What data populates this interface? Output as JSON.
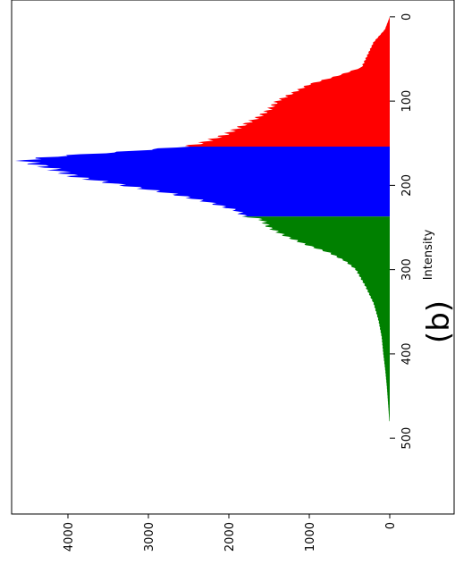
{
  "chart_data": {
    "type": "bar",
    "orientation": "rotated-90-clockwise",
    "xlabel": "Intensity",
    "ylabel": "",
    "panel_label": "(b)",
    "xlim": [
      -20,
      590
    ],
    "ylim": [
      0,
      4700
    ],
    "x_ticks": [
      0,
      100,
      200,
      300,
      400,
      500
    ],
    "y_ticks": [
      0,
      1000,
      2000,
      3000,
      4000
    ],
    "grid": false,
    "legend": "none",
    "colors": {
      "low": "#ff0000",
      "mid": "#0000ff",
      "high": "#008000"
    },
    "segments": [
      {
        "range": [
          0,
          154
        ],
        "color": "#ff0000"
      },
      {
        "range": [
          154,
          237
        ],
        "color": "#0000ff"
      },
      {
        "range": [
          237,
          480
        ],
        "color": "#008000"
      }
    ],
    "profile": [
      [
        0,
        0
      ],
      [
        15,
        60
      ],
      [
        30,
        200
      ],
      [
        50,
        300
      ],
      [
        60,
        350
      ],
      [
        70,
        650
      ],
      [
        80,
        1000
      ],
      [
        90,
        1200
      ],
      [
        100,
        1400
      ],
      [
        110,
        1500
      ],
      [
        120,
        1650
      ],
      [
        130,
        1850
      ],
      [
        140,
        2050
      ],
      [
        150,
        2350
      ],
      [
        154,
        2550
      ],
      [
        160,
        3300
      ],
      [
        165,
        4100
      ],
      [
        170,
        4550
      ],
      [
        175,
        4400
      ],
      [
        180,
        4200
      ],
      [
        190,
        3900
      ],
      [
        200,
        3300
      ],
      [
        210,
        2700
      ],
      [
        220,
        2250
      ],
      [
        230,
        1900
      ],
      [
        237,
        1800
      ],
      [
        240,
        1600
      ],
      [
        250,
        1500
      ],
      [
        260,
        1300
      ],
      [
        270,
        1050
      ],
      [
        280,
        750
      ],
      [
        290,
        550
      ],
      [
        300,
        420
      ],
      [
        320,
        300
      ],
      [
        340,
        200
      ],
      [
        360,
        140
      ],
      [
        380,
        100
      ],
      [
        400,
        80
      ],
      [
        420,
        55
      ],
      [
        440,
        35
      ],
      [
        460,
        20
      ],
      [
        480,
        5
      ],
      [
        490,
        0
      ]
    ]
  }
}
